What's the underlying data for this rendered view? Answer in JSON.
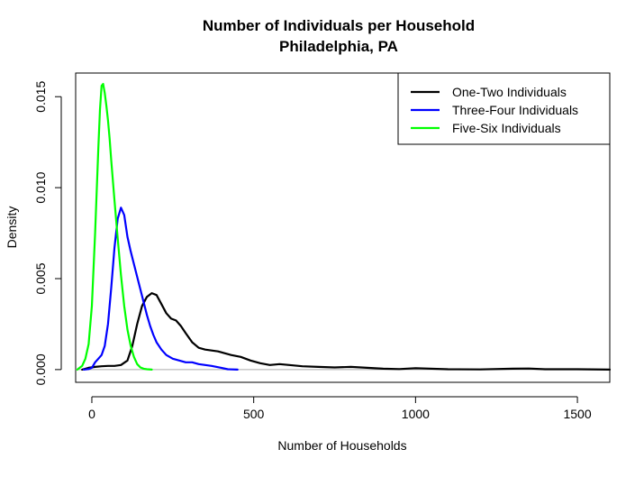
{
  "chart_data": {
    "type": "line",
    "title": [
      "Number of Individuals per Household",
      "Philadelphia, PA"
    ],
    "xlabel": "Number of Households",
    "ylabel": "Density",
    "xlim": [
      -50,
      1600
    ],
    "ylim": [
      -0.0007,
      0.0163
    ],
    "x_ticks": [
      0,
      500,
      1000,
      1500
    ],
    "y_ticks": [
      0.0,
      0.005,
      0.01,
      0.015
    ],
    "x_tick_labels": [
      "0",
      "500",
      "1000",
      "1500"
    ],
    "y_tick_labels": [
      "0.000",
      "0.005",
      "0.010",
      "0.015"
    ],
    "reference_line_y": 0,
    "legend_position": "top-right",
    "series": [
      {
        "name": "One-Two Individuals",
        "color": "#000000",
        "x": [
          -30,
          -10,
          10,
          30,
          50,
          70,
          90,
          110,
          125,
          140,
          155,
          170,
          185,
          200,
          215,
          230,
          245,
          260,
          275,
          290,
          310,
          330,
          350,
          370,
          390,
          410,
          430,
          460,
          490,
          520,
          550,
          580,
          610,
          650,
          700,
          750,
          800,
          850,
          900,
          950,
          1000,
          1100,
          1200,
          1300,
          1350,
          1400,
          1500,
          1600
        ],
        "y": [
          0.0,
          0.0001,
          0.00015,
          0.00018,
          0.0002,
          0.0002,
          0.00025,
          0.0005,
          0.0013,
          0.0025,
          0.0035,
          0.004,
          0.0042,
          0.0041,
          0.0036,
          0.0031,
          0.0028,
          0.0027,
          0.0024,
          0.002,
          0.0015,
          0.0012,
          0.0011,
          0.00105,
          0.001,
          0.0009,
          0.0008,
          0.0007,
          0.0005,
          0.00035,
          0.00025,
          0.0003,
          0.00025,
          0.00018,
          0.00015,
          0.00012,
          0.00015,
          0.0001,
          5e-05,
          3e-05,
          8e-05,
          2e-05,
          1e-05,
          5e-05,
          6e-05,
          2e-05,
          2e-05,
          0.0
        ]
      },
      {
        "name": "Three-Four Individuals",
        "color": "#0000ff",
        "x": [
          -25,
          -10,
          0,
          10,
          20,
          30,
          40,
          50,
          60,
          70,
          80,
          90,
          100,
          110,
          120,
          130,
          140,
          150,
          160,
          170,
          180,
          190,
          200,
          215,
          230,
          250,
          270,
          290,
          310,
          330,
          350,
          370,
          400,
          420,
          450
        ],
        "y": [
          0.0,
          3e-05,
          0.0001,
          0.0004,
          0.0006,
          0.0008,
          0.0013,
          0.0025,
          0.0045,
          0.0067,
          0.0083,
          0.0089,
          0.0085,
          0.0073,
          0.0065,
          0.0058,
          0.0051,
          0.0044,
          0.0037,
          0.003,
          0.0024,
          0.0019,
          0.0015,
          0.0011,
          0.0008,
          0.0006,
          0.0005,
          0.0004,
          0.0004,
          0.0003,
          0.00025,
          0.0002,
          0.0001,
          2e-05,
          0.0
        ]
      },
      {
        "name": "Five-Six Individuals",
        "color": "#00ff00",
        "x": [
          -45,
          -30,
          -20,
          -10,
          0,
          10,
          20,
          25,
          30,
          35,
          40,
          45,
          50,
          55,
          60,
          70,
          80,
          90,
          100,
          110,
          120,
          130,
          140,
          150,
          160,
          170,
          185
        ],
        "y": [
          0.0,
          0.0002,
          0.0006,
          0.0014,
          0.0035,
          0.0075,
          0.0122,
          0.0143,
          0.0156,
          0.0157,
          0.0152,
          0.0145,
          0.0137,
          0.0127,
          0.0115,
          0.0093,
          0.0072,
          0.0052,
          0.0035,
          0.0022,
          0.0013,
          0.0007,
          0.0003,
          0.00012,
          5e-05,
          2e-05,
          0.0
        ]
      }
    ]
  }
}
